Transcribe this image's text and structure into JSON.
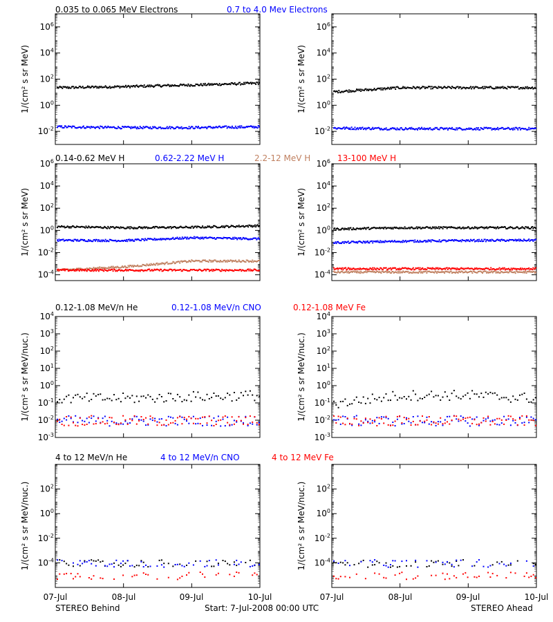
{
  "footer": {
    "left": "STEREO Behind",
    "center": "Start:  7-Jul-2008 00:00 UTC",
    "right": "STEREO Ahead"
  },
  "x_ticks": [
    "07-Jul",
    "08-Jul",
    "09-Jul",
    "10-Jul"
  ],
  "colors": {
    "black": "#000000",
    "blue": "#0000ff",
    "tan": "#c08060",
    "red": "#ff0000"
  },
  "chart_data": [
    {
      "type": "scatter",
      "title_row": 1,
      "ylabel": "1/(cm² s sr MeV)",
      "yscale": "log",
      "ylim": [
        0.001,
        10000000.0
      ],
      "y_ticks": [
        "10^-2",
        "10^0",
        "10^2",
        "10^4",
        "10^6"
      ],
      "x": [
        "07-Jul",
        "08-Jul",
        "09-Jul",
        "10-Jul"
      ],
      "legend": [
        {
          "name": "0.035 to 0.065 MeV Electrons",
          "color": "black"
        },
        {
          "name": "0.7 to 4.0 Mev Electrons",
          "color": "blue"
        }
      ],
      "panels": {
        "STEREO Behind": [
          {
            "name": "0.035 to 0.065 MeV Electrons",
            "values": [
              25,
              30,
              40,
              55
            ]
          },
          {
            "name": "0.7 to 4.0 Mev Electrons",
            "values": [
              0.025,
              0.022,
              0.022,
              0.025
            ]
          }
        ],
        "STEREO Ahead": [
          {
            "name": "0.035 to 0.065 MeV Electrons",
            "values": [
              12,
              25,
              25,
              25
            ]
          },
          {
            "name": "0.7 to 4.0 Mev Electrons",
            "values": [
              0.02,
              0.018,
              0.018,
              0.018
            ]
          }
        ]
      }
    },
    {
      "type": "scatter",
      "title_row": 2,
      "ylabel": "1/(cm² s sr MeV)",
      "yscale": "log",
      "ylim": [
        3e-05,
        1000000.0
      ],
      "y_ticks": [
        "10^-4",
        "10^-2",
        "10^0",
        "10^2",
        "10^4",
        "10^6"
      ],
      "x": [
        "07-Jul",
        "08-Jul",
        "09-Jul",
        "10-Jul"
      ],
      "legend": [
        {
          "name": "0.14-0.62 MeV H",
          "color": "black"
        },
        {
          "name": "0.62-2.22 MeV H",
          "color": "blue"
        },
        {
          "name": "2.2-12 MeV H",
          "color": "tan"
        },
        {
          "name": "13-100 MeV H",
          "color": "red"
        }
      ],
      "panels": {
        "STEREO Behind": [
          {
            "name": "0.14-0.62 MeV H",
            "values": [
              2.5,
              2.0,
              2.2,
              3.0
            ]
          },
          {
            "name": "0.62-2.22 MeV H",
            "values": [
              0.15,
              0.14,
              0.25,
              0.2
            ]
          },
          {
            "name": "2.2-12 MeV H",
            "values": [
              0.0003,
              0.0006,
              0.002,
              0.002
            ]
          },
          {
            "name": "13-100 MeV H",
            "values": [
              0.0003,
              0.0003,
              0.0003,
              0.0003
            ]
          }
        ],
        "STEREO Ahead": [
          {
            "name": "0.14-0.62 MeV H",
            "values": [
              1.5,
              2.0,
              2.0,
              2.0
            ]
          },
          {
            "name": "0.62-2.22 MeV H",
            "values": [
              0.09,
              0.12,
              0.14,
              0.15
            ]
          },
          {
            "name": "2.2-12 MeV H",
            "values": [
              0.0002,
              0.0002,
              0.0002,
              0.0002
            ]
          },
          {
            "name": "13-100 MeV H",
            "values": [
              0.0004,
              0.0004,
              0.0004,
              0.0004
            ]
          }
        ]
      }
    },
    {
      "type": "scatter",
      "title_row": 3,
      "ylabel": "1/(cm² s sr MeV/nuc.)",
      "yscale": "log",
      "ylim": [
        0.001,
        10000.0
      ],
      "y_ticks": [
        "10^-3",
        "10^-2",
        "10^-1",
        "10^0",
        "10^1",
        "10^2",
        "10^3",
        "10^4"
      ],
      "x": [
        "07-Jul",
        "08-Jul",
        "09-Jul",
        "10-Jul"
      ],
      "legend": [
        {
          "name": "0.12-1.08 MeV/n He",
          "color": "black"
        },
        {
          "name": "0.12-1.08 MeV/n CNO",
          "color": "blue"
        },
        {
          "name": "0.12-1.08 MeV Fe",
          "color": "red"
        }
      ],
      "panels": {
        "STEREO Behind": [
          {
            "name": "0.12-1.08 MeV/n He",
            "values": [
              0.2,
              0.2,
              0.25,
              0.3
            ]
          },
          {
            "name": "0.12-1.08 MeV/n CNO",
            "values": [
              0.01,
              0.01,
              0.01,
              0.01
            ]
          },
          {
            "name": "0.12-1.08 MeV Fe",
            "values": [
              0.01,
              0.01,
              0.01,
              0.01
            ]
          }
        ],
        "STEREO Ahead": [
          {
            "name": "0.12-1.08 MeV/n He",
            "values": [
              0.1,
              0.3,
              0.3,
              0.2
            ]
          },
          {
            "name": "0.12-1.08 MeV/n CNO",
            "values": [
              0.01,
              0.01,
              0.01,
              0.01
            ]
          },
          {
            "name": "0.12-1.08 MeV Fe",
            "values": [
              0.01,
              0.01,
              0.01,
              0.01
            ]
          }
        ]
      }
    },
    {
      "type": "scatter",
      "title_row": 4,
      "ylabel": "1/(cm² s sr MeV/nuc.)",
      "yscale": "log",
      "ylim": [
        1e-06,
        10000.0
      ],
      "y_ticks": [
        "10^-4",
        "10^-2",
        "10^0",
        "10^2"
      ],
      "x": [
        "07-Jul",
        "08-Jul",
        "09-Jul",
        "10-Jul"
      ],
      "legend": [
        {
          "name": "4 to 12 MeV/n He",
          "color": "black"
        },
        {
          "name": "4 to 12 MeV/n CNO",
          "color": "blue"
        },
        {
          "name": "4 to 12 MeV Fe",
          "color": "red"
        }
      ],
      "panels": {
        "STEREO Behind": [
          {
            "name": "4 to 12 MeV/n He",
            "values": [
              0.0001,
              0.0001,
              0.0001,
              0.0001
            ]
          },
          {
            "name": "4 to 12 MeV/n CNO",
            "values": [
              0.0001,
              0.0001,
              0.0001,
              0.0001
            ]
          },
          {
            "name": "4 to 12 MeV Fe",
            "values": [
              1e-05,
              1e-05,
              1e-05,
              1e-05
            ]
          }
        ],
        "STEREO Ahead": [
          {
            "name": "4 to 12 MeV/n He",
            "values": [
              0.0001,
              0.0001,
              0.0001,
              0.0001
            ]
          },
          {
            "name": "4 to 12 MeV/n CNO",
            "values": [
              0.0001,
              0.0001,
              0.0001,
              0.0001
            ]
          },
          {
            "name": "4 to 12 MeV Fe",
            "values": [
              1e-05,
              1e-05,
              1e-05,
              1e-05
            ]
          }
        ]
      }
    }
  ]
}
